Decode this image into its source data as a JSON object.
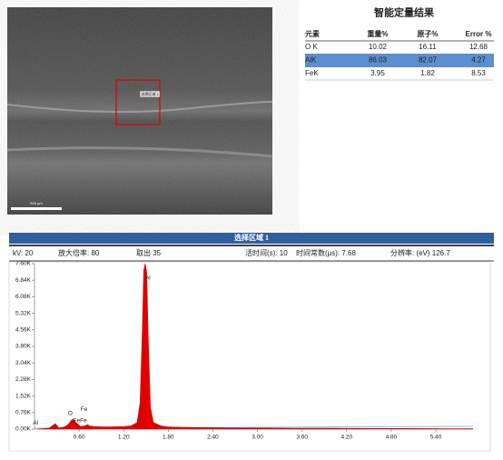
{
  "header": {
    "title": "智能定量结果"
  },
  "sem": {
    "region_label": "选择区域 1",
    "scale_bar": "500 µm"
  },
  "table": {
    "columns": [
      "元素",
      "重量%",
      "原子%",
      "Error %"
    ],
    "rows": [
      [
        "O K",
        "10.02",
        "16.11",
        "12.68"
      ],
      [
        "AlK",
        "86.03",
        "82.07",
        "4.27"
      ],
      [
        "FeK",
        "3.95",
        "1.82",
        "8.53"
      ]
    ]
  },
  "spectrum_header": {
    "title": "选择区域 1",
    "info": [
      "kV: 20",
      "放大倍率: 80",
      "取出 35",
      "活时间(s): 10",
      "时间常数(µs): 7.68",
      "分辨率: (eV) 126.7"
    ]
  },
  "chart_data": {
    "type": "area",
    "color": "#e00000",
    "x": [
      0.05,
      0.2,
      0.28,
      0.33,
      0.4,
      0.45,
      0.5,
      0.52,
      0.56,
      0.62,
      0.68,
      0.71,
      0.75,
      0.8,
      0.9,
      1.0,
      1.1,
      1.2,
      1.3,
      1.38,
      1.42,
      1.45,
      1.47,
      1.49,
      1.51,
      1.53,
      1.56,
      1.6,
      1.7,
      1.8,
      2.0,
      2.5,
      3.0,
      3.5,
      4.0,
      4.5,
      5.0,
      5.5,
      5.9
    ],
    "values": [
      0,
      0.05,
      0.25,
      0.05,
      0.1,
      0.2,
      0.42,
      0.45,
      0.3,
      0.12,
      0.15,
      0.2,
      0.14,
      0.12,
      0.1,
      0.1,
      0.11,
      0.12,
      0.15,
      0.3,
      1.2,
      4.5,
      7.3,
      7.6,
      7.2,
      4.2,
      1.0,
      0.3,
      0.15,
      0.1,
      0.08,
      0.06,
      0.05,
      0.04,
      0.04,
      0.03,
      0.03,
      0.02,
      0.02
    ],
    "xlim": [
      0,
      5.9
    ],
    "ylim": [
      0,
      7.6
    ],
    "xticks": [
      {
        "value": 0.6,
        "label": "0.60"
      },
      {
        "value": 1.2,
        "label": "1.20"
      },
      {
        "value": 1.8,
        "label": "1.80"
      },
      {
        "value": 2.4,
        "label": "2.40"
      },
      {
        "value": 3.0,
        "label": "3.00"
      },
      {
        "value": 3.6,
        "label": "3.60"
      },
      {
        "value": 4.2,
        "label": "4.20"
      },
      {
        "value": 4.8,
        "label": "4.80"
      },
      {
        "value": 5.4,
        "label": "5.40"
      }
    ],
    "yticks": [
      {
        "value": 0,
        "label": "0.00K"
      },
      {
        "value": 0.76,
        "label": "0.76K"
      },
      {
        "value": 1.52,
        "label": "1.52K"
      },
      {
        "value": 2.28,
        "label": "2.28K"
      },
      {
        "value": 3.04,
        "label": "3.04K"
      },
      {
        "value": 3.8,
        "label": "3.80K"
      },
      {
        "value": 4.56,
        "label": "4.56K"
      },
      {
        "value": 5.32,
        "label": "5.32K"
      },
      {
        "value": 6.08,
        "label": "6.08K"
      },
      {
        "value": 6.84,
        "label": "6.84K"
      },
      {
        "value": 7.6,
        "label": "7.60K"
      }
    ],
    "annotations": [
      {
        "label": "Al",
        "x": 1.49,
        "y": 6.95
      },
      {
        "label": "O",
        "x": 0.45,
        "y": 0.71
      },
      {
        "label": "Fe",
        "x": 0.62,
        "y": 0.9
      },
      {
        "label": "FeFe",
        "x": 0.52,
        "y": 0.38
      },
      {
        "label": "Al",
        "x": -0.02,
        "y": 0.29
      }
    ]
  }
}
